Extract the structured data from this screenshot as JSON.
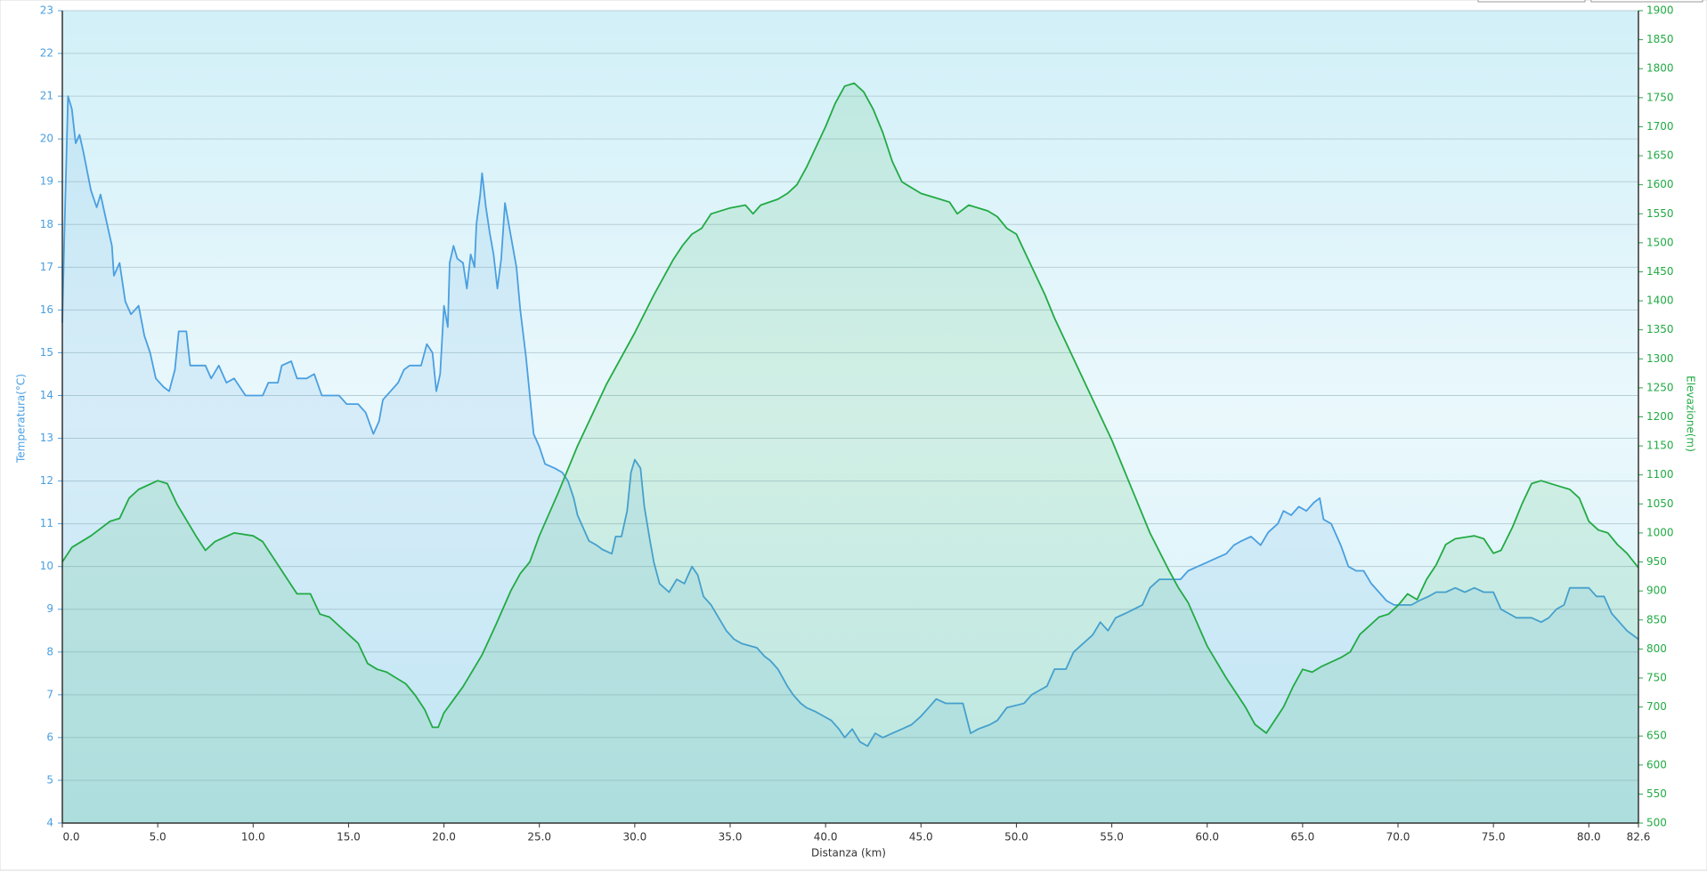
{
  "chart_data": {
    "type": "line",
    "xlabel": "Distanza  (km)",
    "ylabel": "Temperatura(°C)",
    "y2label": "Elevazione(m)",
    "xlim": [
      0,
      82.6
    ],
    "xticks": [
      {
        "value": 0,
        "label": "0.0"
      },
      {
        "value": 5,
        "label": "5.0"
      },
      {
        "value": 10,
        "label": "10.0"
      },
      {
        "value": 15,
        "label": "15.0"
      },
      {
        "value": 20,
        "label": "20.0"
      },
      {
        "value": 25,
        "label": "25.0"
      },
      {
        "value": 30,
        "label": "30.0"
      },
      {
        "value": 35,
        "label": "35.0"
      },
      {
        "value": 40,
        "label": "40.0"
      },
      {
        "value": 45,
        "label": "45.0"
      },
      {
        "value": 50,
        "label": "50.0"
      },
      {
        "value": 55,
        "label": "55.0"
      },
      {
        "value": 60,
        "label": "60.0"
      },
      {
        "value": 65,
        "label": "65.0"
      },
      {
        "value": 70,
        "label": "70.0"
      },
      {
        "value": 75,
        "label": "75.0"
      },
      {
        "value": 80,
        "label": "80.0"
      },
      82.6
    ],
    "ylim": [
      4,
      23
    ],
    "yticks": [
      4,
      5,
      6,
      7,
      8,
      9,
      10,
      11,
      12,
      13,
      14,
      15,
      16,
      17,
      18,
      19,
      20,
      21,
      22,
      23
    ],
    "y2lim": [
      500,
      1900
    ],
    "y2ticks": [
      500,
      550,
      600,
      650,
      700,
      750,
      800,
      850,
      900,
      950,
      1000,
      1050,
      1100,
      1150,
      1200,
      1250,
      1300,
      1350,
      1400,
      1450,
      1500,
      1550,
      1600,
      1650,
      1700,
      1750,
      1800,
      1850,
      1900
    ],
    "grid": true,
    "series": [
      {
        "color": "#4a9fe0",
        "axis": "y",
        "x": [
          0,
          0.1,
          0.3,
          0.5,
          0.7,
          0.9,
          1.1,
          1.5,
          1.8,
          2,
          2.3,
          2.6,
          2.7,
          3,
          3.3,
          3.6,
          4,
          4.3,
          4.6,
          4.9,
          5.3,
          5.6,
          5.9,
          6.1,
          6.5,
          6.7,
          7.5,
          7.8,
          8.2,
          8.6,
          9,
          9.3,
          9.6,
          10.5,
          10.8,
          11.3,
          11.5,
          12,
          12.3,
          12.8,
          13.2,
          13.6,
          14.5,
          14.9,
          15.5,
          15.9,
          16.3,
          16.6,
          16.8,
          17.2,
          17.6,
          17.9,
          18.2,
          18.8,
          19.1,
          19.4,
          19.6,
          19.8,
          20,
          20.2,
          20.3,
          20.5,
          20.7,
          21,
          21.2,
          21.4,
          21.6,
          21.7,
          21.9,
          22,
          22.2,
          22.4,
          22.6,
          22.8,
          23,
          23.2,
          23.4,
          23.6,
          23.8,
          24,
          24.3,
          24.5,
          24.7,
          25,
          25.3,
          25.8,
          26.2,
          26.5,
          26.8,
          27,
          27.3,
          27.6,
          28,
          28.3,
          28.8,
          29,
          29.3,
          29.6,
          29.8,
          30,
          30.3,
          30.5,
          30.8,
          31,
          31.3,
          31.8,
          32.2,
          32.6,
          33,
          33.3,
          33.6,
          34,
          34.4,
          34.8,
          35.2,
          35.6,
          36.4,
          36.8,
          37.1,
          37.5,
          38,
          38.3,
          38.7,
          39,
          39.5,
          39.9,
          40.3,
          40.7,
          41,
          41.4,
          41.8,
          42.2,
          42.6,
          43,
          43.5,
          44,
          44.5,
          45,
          45.4,
          45.8,
          46.3,
          47.2,
          47.6,
          48,
          48.6,
          49,
          49.5,
          50.4,
          50.8,
          51.2,
          51.6,
          52,
          52.6,
          53,
          53.5,
          54,
          54.4,
          54.8,
          55.2,
          55.7,
          56.6,
          57,
          57.5,
          58.6,
          59,
          59.5,
          60,
          60.5,
          61,
          61.4,
          61.8,
          62.3,
          62.8,
          63.2,
          63.7,
          64,
          64.4,
          64.8,
          65.2,
          65.6,
          65.9,
          66.1,
          66.5,
          67,
          67.4,
          67.8,
          68.2,
          68.6,
          69,
          69.4,
          69.8,
          70.7,
          71.1,
          71.6,
          72,
          72.5,
          73,
          73.5,
          74,
          74.5,
          75,
          75.4,
          75.8,
          76.2,
          77,
          77.5,
          77.9,
          78.3,
          78.7,
          79,
          80,
          80.4,
          80.8,
          81.2,
          81.6,
          82,
          82.3,
          82.6
        ],
        "values": [
          15.7,
          17.6,
          21,
          20.7,
          19.9,
          20.1,
          19.7,
          18.8,
          18.4,
          18.7,
          18.1,
          17.5,
          16.8,
          17.1,
          16.2,
          15.9,
          16.1,
          15.4,
          15,
          14.4,
          14.2,
          14.1,
          14.6,
          15.5,
          15.5,
          14.7,
          14.7,
          14.4,
          14.7,
          14.3,
          14.4,
          14.2,
          14,
          14,
          14.3,
          14.3,
          14.7,
          14.8,
          14.4,
          14.4,
          14.5,
          14,
          14,
          13.8,
          13.8,
          13.6,
          13.1,
          13.4,
          13.9,
          14.1,
          14.3,
          14.6,
          14.7,
          14.7,
          15.2,
          15,
          14.1,
          14.5,
          16.1,
          15.6,
          17.1,
          17.5,
          17.2,
          17.1,
          16.5,
          17.3,
          17,
          18,
          18.7,
          19.2,
          18.4,
          17.8,
          17.3,
          16.5,
          17.2,
          18.5,
          18,
          17.5,
          17,
          16,
          14.9,
          14,
          13.1,
          12.8,
          12.4,
          12.3,
          12.2,
          12,
          11.6,
          11.2,
          10.9,
          10.6,
          10.5,
          10.4,
          10.3,
          10.7,
          10.7,
          11.3,
          12.2,
          12.5,
          12.3,
          11.4,
          10.6,
          10.1,
          9.6,
          9.4,
          9.7,
          9.6,
          10,
          9.8,
          9.3,
          9.1,
          8.8,
          8.5,
          8.3,
          8.2,
          8.1,
          7.9,
          7.8,
          7.6,
          7.2,
          7,
          6.8,
          6.7,
          6.6,
          6.5,
          6.4,
          6.2,
          6,
          6.2,
          5.9,
          5.8,
          6.1,
          6,
          6.1,
          6.2,
          6.3,
          6.5,
          6.7,
          6.9,
          6.8,
          6.8,
          6.1,
          6.2,
          6.3,
          6.4,
          6.7,
          6.8,
          7,
          7.1,
          7.2,
          7.6,
          7.6,
          8,
          8.2,
          8.4,
          8.7,
          8.5,
          8.8,
          8.9,
          9.1,
          9.5,
          9.7,
          9.7,
          9.9,
          10,
          10.1,
          10.2,
          10.3,
          10.5,
          10.6,
          10.7,
          10.5,
          10.8,
          11,
          11.3,
          11.2,
          11.4,
          11.3,
          11.5,
          11.6,
          11.1,
          11,
          10.5,
          10,
          9.9,
          9.9,
          9.6,
          9.4,
          9.2,
          9.1,
          9.1,
          9.2,
          9.3,
          9.4,
          9.4,
          9.5,
          9.4,
          9.5,
          9.4,
          9.4,
          9,
          8.9,
          8.8,
          8.8,
          8.7,
          8.8,
          9,
          9.1,
          9.5,
          9.5,
          9.3,
          9.3,
          8.9,
          8.7,
          8.5,
          8.4,
          8.3
        ]
      },
      {
        "color": "#22aa44",
        "axis": "y2",
        "x": [
          0,
          0.5,
          1.5,
          2.5,
          3,
          3.5,
          4,
          5,
          5.5,
          6,
          7,
          7.5,
          8,
          9,
          10,
          10.5,
          11,
          12,
          12.3,
          13,
          13.5,
          14,
          15,
          15.5,
          16,
          16.5,
          17,
          17.5,
          18,
          18.5,
          19,
          19.4,
          19.7,
          20,
          21,
          22,
          22.7,
          23.5,
          24,
          24.5,
          25,
          26,
          27,
          28,
          28.5,
          29,
          30,
          31,
          32,
          32.5,
          33,
          33.5,
          34,
          35,
          35.8,
          36.2,
          36.6,
          37.5,
          38,
          38.5,
          39,
          39.5,
          40,
          40.5,
          41,
          41.5,
          42,
          42.5,
          43,
          43.5,
          44,
          45,
          46,
          46.5,
          46.9,
          47.5,
          48.5,
          49,
          49.5,
          50,
          50.5,
          51,
          51.5,
          52,
          53,
          54,
          55,
          56,
          57,
          58,
          58.5,
          59,
          60,
          61,
          62,
          62.5,
          63.1,
          63.5,
          64,
          64.5,
          65,
          65.5,
          66,
          67,
          67.5,
          68,
          68.5,
          69,
          69.5,
          70,
          70.5,
          71,
          71.5,
          72,
          72.5,
          73,
          74,
          74.5,
          75,
          75.4,
          76,
          76.5,
          77,
          77.5,
          78.5,
          79,
          79.5,
          80,
          80.5,
          81,
          81.5,
          82,
          82.6
        ],
        "values": [
          950,
          975,
          995,
          1020,
          1025,
          1060,
          1075,
          1090,
          1085,
          1050,
          995,
          970,
          985,
          1000,
          995,
          985,
          960,
          910,
          895,
          895,
          860,
          855,
          825,
          810,
          775,
          765,
          760,
          750,
          740,
          720,
          695,
          665,
          665,
          690,
          735,
          790,
          840,
          900,
          930,
          950,
          995,
          1070,
          1150,
          1220,
          1255,
          1285,
          1345,
          1410,
          1470,
          1495,
          1515,
          1525,
          1550,
          1560,
          1565,
          1550,
          1565,
          1575,
          1585,
          1600,
          1630,
          1665,
          1700,
          1740,
          1770,
          1775,
          1760,
          1730,
          1690,
          1640,
          1605,
          1585,
          1575,
          1570,
          1550,
          1565,
          1555,
          1545,
          1525,
          1515,
          1480,
          1445,
          1410,
          1370,
          1300,
          1230,
          1160,
          1080,
          1000,
          935,
          905,
          880,
          805,
          750,
          700,
          670,
          655,
          675,
          700,
          735,
          765,
          760,
          770,
          785,
          795,
          825,
          840,
          855,
          860,
          875,
          895,
          885,
          920,
          945,
          980,
          990,
          995,
          990,
          965,
          970,
          1010,
          1050,
          1085,
          1090,
          1080,
          1075,
          1060,
          1020,
          1005,
          1000,
          980,
          965,
          940
        ]
      }
    ]
  }
}
